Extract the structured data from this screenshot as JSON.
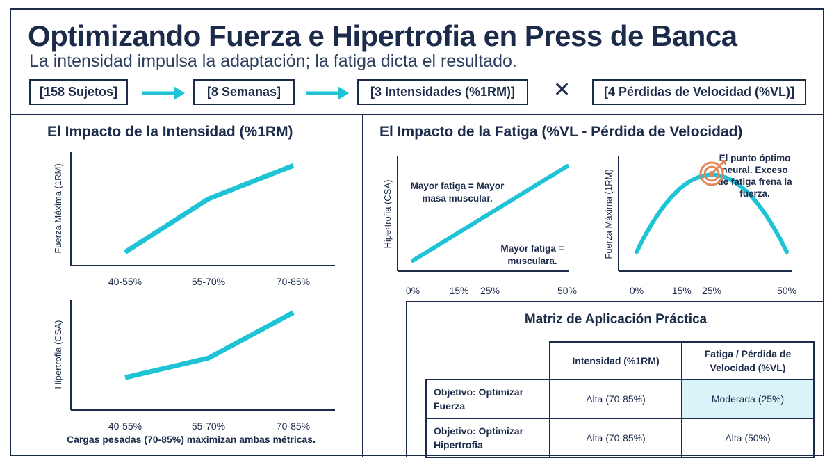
{
  "header": {
    "title": "Optimizando Fuerza e Hipertrofia en Press de Banca",
    "subtitle": "La intensidad impulsa la adaptación; la fatiga dicta el resultado.",
    "flow": [
      "[158 Sujetos]",
      "[8 Semanas]",
      "[3 Intensidades (%1RM)]",
      "[4 Pérdidas de Velocidad (%VL)]"
    ],
    "times_symbol": "✕"
  },
  "left_section": {
    "title": "El Impacto de la Intensidad (%1RM)",
    "caption": "Cargas pesadas (70-85%) maximizan ambas métricas."
  },
  "right_section": {
    "title": "El Impacto de la Fatiga (%VL - Pérdida de Velocidad)"
  },
  "chart_data": [
    {
      "id": "intensity-strength",
      "type": "line",
      "categories": [
        "40-55%",
        "55-70%",
        "70-85%"
      ],
      "values": [
        1.0,
        2.6,
        3.6
      ],
      "ylim": [
        0.6,
        4.0
      ],
      "ylabel": "Fuerza Máxima (1RM)",
      "xlabel": "",
      "color": "#1ec3d6"
    },
    {
      "id": "intensity-hypertrophy",
      "type": "line",
      "categories": [
        "40-55%",
        "55-70%",
        "70-85%"
      ],
      "values": [
        1.6,
        2.2,
        3.6
      ],
      "ylim": [
        0.6,
        4.0
      ],
      "ylabel": "Hipertrofia (CSA)",
      "xlabel": "",
      "color": "#1ec3d6"
    },
    {
      "id": "fatigue-hypertrophy",
      "type": "line",
      "x": [
        0,
        50
      ],
      "y": [
        1,
        10
      ],
      "xticks": [
        "0%",
        "15%",
        "25%",
        "50%"
      ],
      "xtick_values": [
        0,
        15,
        25,
        50
      ],
      "xlim": [
        0,
        50
      ],
      "ylim": [
        0,
        11
      ],
      "ylabel": "Hipertrofia (CSA)",
      "annotations": [
        "Mayor fatiga = Mayor",
        "masa muscular.",
        "Mayor fatiga =",
        "musculara."
      ],
      "color": "#1ec3d6"
    },
    {
      "id": "fatigue-strength",
      "type": "line",
      "curve": "parabola",
      "peak_x": 25,
      "x": [
        0,
        25,
        50
      ],
      "y": [
        2,
        10,
        2
      ],
      "xticks": [
        "0%",
        "15%",
        "25%",
        "50%"
      ],
      "xtick_values": [
        0,
        15,
        25,
        50
      ],
      "xlim": [
        0,
        50
      ],
      "ylim": [
        0,
        12
      ],
      "ylabel": "Fuerza Máxima (1RM)",
      "annotations": [
        "El punto óptimo",
        "neural. Exceso",
        "de fatiga frena la",
        "fuerza."
      ],
      "color": "#1ec3d6"
    }
  ],
  "matrix": {
    "title": "Matriz de Aplicación Práctica",
    "columns": [
      "Intensidad (%1RM)",
      "Fatiga / Pérdida de",
      "Velocidad (%VL)"
    ],
    "rows": [
      {
        "label1": "Objetivo: Optimizar",
        "label2": "Fuerza",
        "intensity": "Alta (70-85%)",
        "fatigue": "Moderada (25%)"
      },
      {
        "label1": "Objetivo: Optimizar",
        "label2": "Hipertrofia",
        "intensity": "Alta (70-85%)",
        "fatigue": "Alta (50%)"
      }
    ]
  },
  "colors": {
    "navy": "#1c2b4a",
    "line": "#1ec3d6",
    "highlight": "#d8f4f8",
    "icon": "#e0875a"
  },
  "icons": {
    "arrow": "arrow-right-icon",
    "target": "target-icon"
  }
}
